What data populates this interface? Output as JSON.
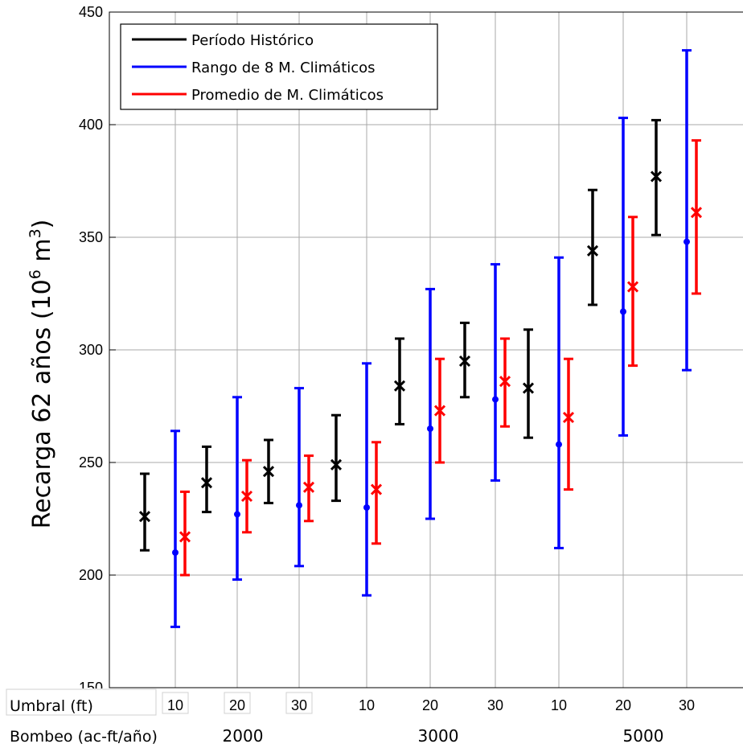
{
  "chart_data": {
    "type": "errorbar",
    "title": "",
    "ylabel": "Recarga 62 años (10",
    "ylabel_sup1": "6",
    "ylabel_mid": " m",
    "ylabel_sup2": "3",
    "ylabel_end": ")",
    "ylim": [
      150,
      450
    ],
    "yticks": [
      150,
      200,
      250,
      300,
      350,
      400,
      450
    ],
    "grid": true,
    "legend_position": "top-left",
    "groups_row1_label": "Umbral (ft)",
    "groups_row2_label": "Bombeo (ac-ft/año)",
    "categories": [
      "10",
      "20",
      "30",
      "10",
      "20",
      "30",
      "10",
      "20",
      "30"
    ],
    "bombeo_labels": [
      "2000",
      "3000",
      "5000"
    ],
    "series": [
      {
        "name": "Período Histórico",
        "color": "#000000",
        "marker": "x",
        "center": [
          226,
          241,
          246,
          249,
          284,
          295,
          283,
          344,
          377
        ],
        "low": [
          211,
          228,
          232,
          233,
          267,
          279,
          261,
          320,
          351
        ],
        "high": [
          245,
          257,
          260,
          271,
          305,
          312,
          309,
          371,
          402
        ]
      },
      {
        "name": "Rango de 8 M. Climáticos",
        "color": "#0000ff",
        "marker": "dot",
        "center": [
          210,
          227,
          231,
          230,
          265,
          278,
          258,
          317,
          348
        ],
        "low": [
          177,
          198,
          204,
          191,
          225,
          242,
          212,
          262,
          291
        ],
        "high": [
          264,
          279,
          283,
          294,
          327,
          338,
          341,
          403,
          433
        ]
      },
      {
        "name": "Promedio de M. Climáticos",
        "color": "#ff0000",
        "marker": "x",
        "center": [
          217,
          235,
          239,
          238,
          273,
          286,
          270,
          328,
          361
        ],
        "low": [
          200,
          219,
          224,
          214,
          250,
          266,
          238,
          293,
          325
        ],
        "high": [
          237,
          251,
          253,
          259,
          296,
          305,
          296,
          359,
          393
        ]
      }
    ]
  }
}
